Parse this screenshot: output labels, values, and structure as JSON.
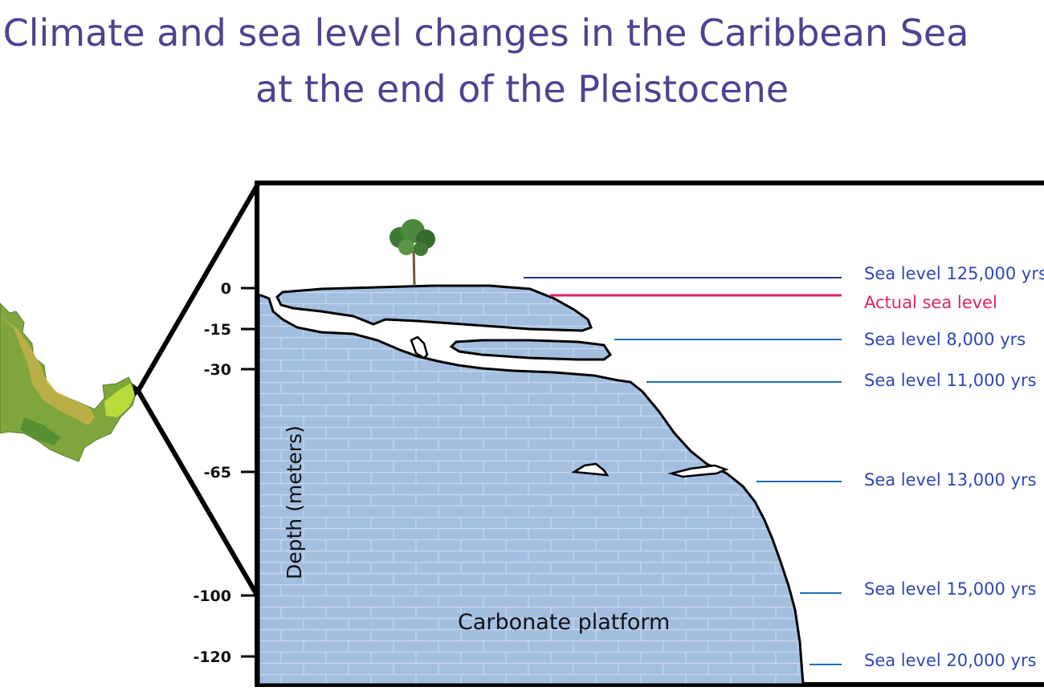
{
  "title": {
    "line1": "Climate and sea level changes in the Caribbean Sea",
    "line2": "at the end of the Pleistocene"
  },
  "axis": {
    "label": "Depth (meters)",
    "ticks": [
      "0",
      "-15",
      "-30",
      "-65",
      "-100",
      "-120"
    ]
  },
  "platform_label": "Carbonate platform",
  "sea_levels": [
    {
      "label": "Sea level 125,000 yrs",
      "color": "#2a2f8c"
    },
    {
      "label": "Actual sea level",
      "color": "#e0245e"
    },
    {
      "label": "Sea level 8,000 yrs",
      "color": "#1f6fb5"
    },
    {
      "label": "Sea level 11,000 yrs",
      "color": "#1f6fb5"
    },
    {
      "label": "Sea level 13,000 yrs",
      "color": "#1f6fb5"
    },
    {
      "label": "Sea level 15,000 yrs",
      "color": "#1f6fb5"
    },
    {
      "label": "Sea level 20,000 yrs",
      "color": "#1f6fb5"
    }
  ],
  "colors": {
    "title": "#4e4290",
    "platform_fill": "#a3bfe0",
    "outline": "#000000"
  },
  "icons": [
    "map-inset-icon",
    "tree-icon"
  ]
}
